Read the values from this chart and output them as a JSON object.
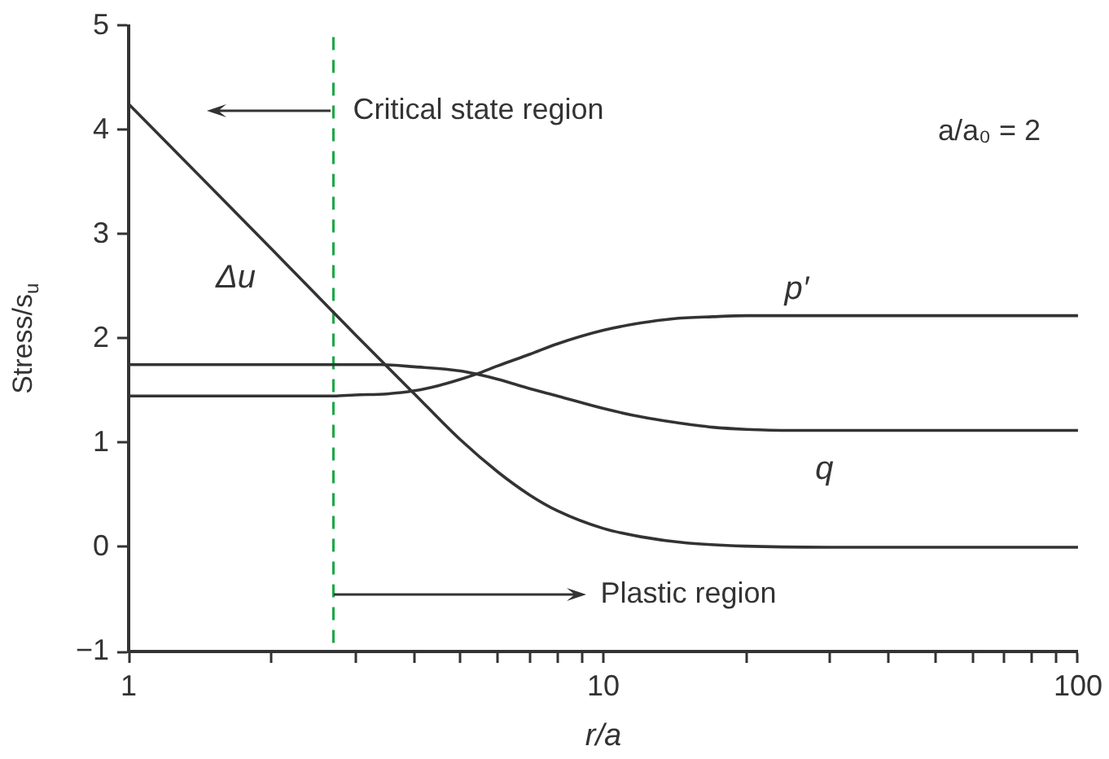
{
  "chart_data": {
    "type": "line",
    "xlabel": "r/a",
    "ylabel": "Stress/s$_{u}$",
    "log": "x",
    "marker": "none",
    "line_style": "solid",
    "xlim": [
      1,
      100
    ],
    "xticks": [
      1,
      {
        "value": 2,
        "label": null
      },
      {
        "value": 3,
        "label": null
      },
      {
        "value": 4,
        "label": null
      },
      {
        "value": 5,
        "label": null
      },
      {
        "value": 6,
        "label": null
      },
      {
        "value": 7,
        "label": null
      },
      {
        "value": 8,
        "label": null
      },
      {
        "value": 9,
        "label": null
      },
      10,
      {
        "value": 20,
        "label": null
      },
      {
        "value": 30,
        "label": null
      },
      {
        "value": 40,
        "label": null
      },
      {
        "value": 50,
        "label": null
      },
      {
        "value": 60,
        "label": null
      },
      {
        "value": 70,
        "label": null
      },
      {
        "value": 80,
        "label": null
      },
      {
        "value": 90,
        "label": null
      },
      100
    ],
    "ylim": [
      -1,
      5
    ],
    "yticks": [
      {
        "value": -1,
        "label": "−1"
      },
      0,
      1,
      2,
      3,
      4,
      5
    ],
    "series": [
      {
        "name": "Δu",
        "color": "#333333",
        "x": [
          1,
          2,
          3,
          4,
          5,
          6,
          7,
          8,
          10,
          12,
          15,
          20,
          30,
          100
        ],
        "values": [
          4.25,
          2.86,
          2.04,
          1.47,
          1.03,
          0.72,
          0.5,
          0.35,
          0.18,
          0.1,
          0.04,
          0.01,
          0,
          0
        ]
      },
      {
        "name": "p′",
        "color": "#333333",
        "x": [
          1,
          2.7,
          3,
          3.5,
          4,
          4.5,
          5,
          5.4,
          6,
          7,
          8,
          10,
          12,
          14,
          17,
          20,
          100
        ],
        "values": [
          1.45,
          1.45,
          1.46,
          1.47,
          1.5,
          1.55,
          1.61,
          1.66,
          1.74,
          1.85,
          1.95,
          2.08,
          2.15,
          2.19,
          2.21,
          2.22,
          2.22
        ]
      },
      {
        "name": "q",
        "color": "#333333",
        "x": [
          1,
          3.4,
          4,
          5,
          5.4,
          6,
          7,
          8,
          10,
          12,
          14,
          17,
          20,
          25,
          100
        ],
        "values": [
          1.75,
          1.75,
          1.73,
          1.69,
          1.66,
          1.61,
          1.52,
          1.45,
          1.33,
          1.25,
          1.2,
          1.15,
          1.13,
          1.12,
          1.12
        ]
      }
    ],
    "ref_lines": [
      {
        "axis": "x",
        "value": 2.7,
        "color": "#22a84a",
        "line_style": "dashed"
      }
    ],
    "annotations": [
      "Critical state region",
      "a/a₀ = 2",
      "Plastic region"
    ]
  }
}
